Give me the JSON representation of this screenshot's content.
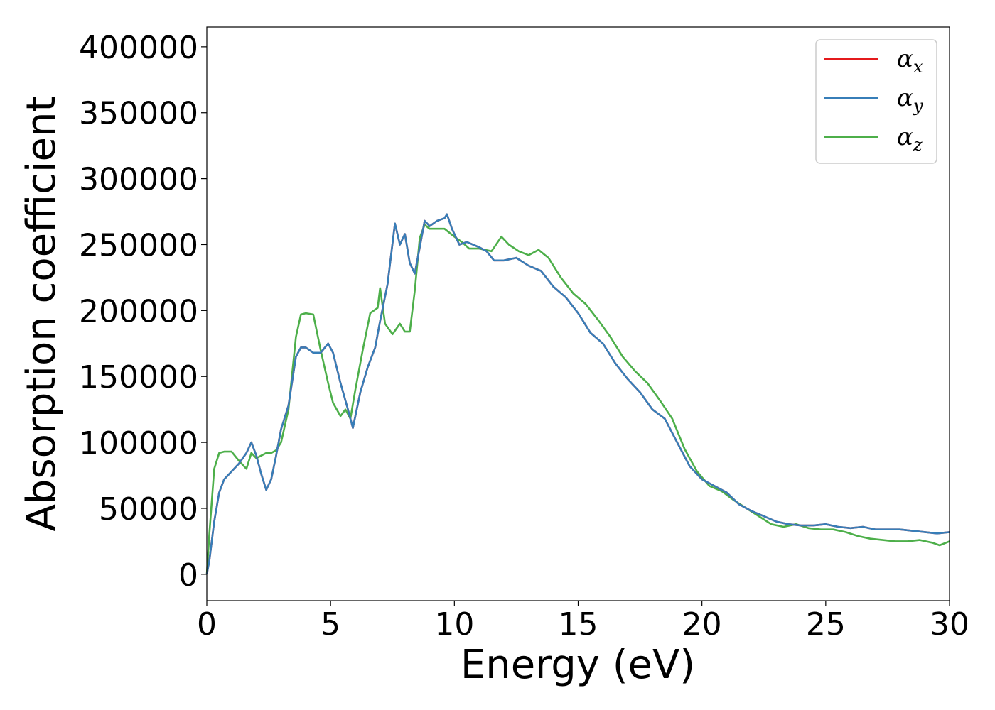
{
  "chart_data": {
    "type": "line",
    "xlabel": "Energy (eV)",
    "ylabel": "Absorption coefficient",
    "xlim": [
      0,
      30
    ],
    "ylim": [
      -20000,
      415000
    ],
    "xticks": [
      0,
      5,
      10,
      15,
      20,
      25,
      30
    ],
    "yticks": [
      0,
      50000,
      100000,
      150000,
      200000,
      250000,
      300000,
      350000,
      400000
    ],
    "grid": false,
    "legend_position": "top-right",
    "series": [
      {
        "name": "α_x",
        "label_main": "α",
        "label_sub": "x",
        "color": "#e41a1c",
        "x": [
          0,
          0.1,
          0.3,
          0.5,
          0.7,
          1.0,
          1.3,
          1.6,
          1.8,
          2.0,
          2.2,
          2.4,
          2.6,
          2.8,
          3.0,
          3.3,
          3.6,
          3.8,
          4.0,
          4.3,
          4.6,
          4.9,
          5.1,
          5.4,
          5.7,
          5.9,
          6.2,
          6.5,
          6.8,
          7.0,
          7.3,
          7.6,
          7.8,
          8.0,
          8.2,
          8.4,
          8.6,
          8.8,
          9.0,
          9.3,
          9.6,
          9.7,
          9.9,
          10.2,
          10.5,
          11.0,
          11.3,
          11.6,
          12.0,
          12.5,
          13.0,
          13.5,
          14.0,
          14.5,
          15.0,
          15.5,
          16.0,
          16.5,
          17.0,
          17.5,
          18.0,
          18.5,
          19.0,
          19.5,
          20.0,
          20.5,
          21.0,
          21.5,
          22.0,
          22.5,
          23.0,
          23.5,
          24.0,
          24.5,
          25.0,
          25.5,
          26.0,
          26.5,
          27.0,
          27.5,
          28.0,
          28.5,
          29.0,
          29.5,
          30.0
        ],
        "y": [
          0,
          10000,
          40000,
          62000,
          72000,
          78000,
          84000,
          92000,
          100000,
          90000,
          76000,
          64000,
          72000,
          90000,
          110000,
          128000,
          165000,
          172000,
          172000,
          168000,
          168000,
          175000,
          168000,
          145000,
          125000,
          111000,
          138000,
          157000,
          172000,
          192000,
          220000,
          266000,
          250000,
          258000,
          236000,
          228000,
          248000,
          268000,
          264000,
          268000,
          270000,
          273000,
          262000,
          250000,
          252000,
          248000,
          245000,
          238000,
          238000,
          240000,
          234000,
          230000,
          218000,
          210000,
          198000,
          183000,
          175000,
          160000,
          148000,
          138000,
          125000,
          118000,
          100000,
          82000,
          72000,
          67000,
          62000,
          53000,
          48000,
          44000,
          40000,
          38000,
          37000,
          37000,
          38000,
          36000,
          35000,
          36000,
          34000,
          34000,
          34000,
          33000,
          32000,
          31000,
          32000
        ]
      },
      {
        "name": "α_y",
        "label_main": "α",
        "label_sub": "y",
        "color": "#377eb8",
        "x": [
          0,
          0.1,
          0.3,
          0.5,
          0.7,
          1.0,
          1.3,
          1.6,
          1.8,
          2.0,
          2.2,
          2.4,
          2.6,
          2.8,
          3.0,
          3.3,
          3.6,
          3.8,
          4.0,
          4.3,
          4.6,
          4.9,
          5.1,
          5.4,
          5.7,
          5.9,
          6.2,
          6.5,
          6.8,
          7.0,
          7.3,
          7.6,
          7.8,
          8.0,
          8.2,
          8.4,
          8.6,
          8.8,
          9.0,
          9.3,
          9.6,
          9.7,
          9.9,
          10.2,
          10.5,
          11.0,
          11.3,
          11.6,
          12.0,
          12.5,
          13.0,
          13.5,
          14.0,
          14.5,
          15.0,
          15.5,
          16.0,
          16.5,
          17.0,
          17.5,
          18.0,
          18.5,
          19.0,
          19.5,
          20.0,
          20.5,
          21.0,
          21.5,
          22.0,
          22.5,
          23.0,
          23.5,
          24.0,
          24.5,
          25.0,
          25.5,
          26.0,
          26.5,
          27.0,
          27.5,
          28.0,
          28.5,
          29.0,
          29.5,
          30.0
        ],
        "y": [
          0,
          10000,
          40000,
          62000,
          72000,
          78000,
          84000,
          92000,
          100000,
          90000,
          76000,
          64000,
          72000,
          90000,
          110000,
          128000,
          165000,
          172000,
          172000,
          168000,
          168000,
          175000,
          168000,
          145000,
          125000,
          111000,
          138000,
          157000,
          172000,
          192000,
          220000,
          266000,
          250000,
          258000,
          236000,
          228000,
          248000,
          268000,
          264000,
          268000,
          270000,
          273000,
          262000,
          250000,
          252000,
          248000,
          245000,
          238000,
          238000,
          240000,
          234000,
          230000,
          218000,
          210000,
          198000,
          183000,
          175000,
          160000,
          148000,
          138000,
          125000,
          118000,
          100000,
          82000,
          72000,
          67000,
          62000,
          53000,
          48000,
          44000,
          40000,
          38000,
          37000,
          37000,
          38000,
          36000,
          35000,
          36000,
          34000,
          34000,
          34000,
          33000,
          32000,
          31000,
          32000
        ]
      },
      {
        "name": "α_z",
        "label_main": "α",
        "label_sub": "z",
        "color": "#4daf4a",
        "x": [
          0,
          0.1,
          0.3,
          0.5,
          0.7,
          1.0,
          1.3,
          1.6,
          1.8,
          2.0,
          2.2,
          2.4,
          2.6,
          2.8,
          3.0,
          3.3,
          3.6,
          3.8,
          4.0,
          4.3,
          4.6,
          4.9,
          5.1,
          5.4,
          5.6,
          5.8,
          6.0,
          6.3,
          6.6,
          6.9,
          7.0,
          7.2,
          7.5,
          7.8,
          8.0,
          8.2,
          8.4,
          8.6,
          8.8,
          9.0,
          9.3,
          9.6,
          10.0,
          10.3,
          10.6,
          11.0,
          11.5,
          11.9,
          12.2,
          12.6,
          13.0,
          13.4,
          13.8,
          14.3,
          14.8,
          15.3,
          15.8,
          16.3,
          16.8,
          17.3,
          17.8,
          18.3,
          18.8,
          19.3,
          19.8,
          20.3,
          20.8,
          21.3,
          21.8,
          22.3,
          22.8,
          23.3,
          23.8,
          24.3,
          24.8,
          25.3,
          25.8,
          26.3,
          26.8,
          27.3,
          27.8,
          28.3,
          28.8,
          29.3,
          29.6,
          30.0
        ],
        "y": [
          0,
          30000,
          80000,
          92000,
          93000,
          93000,
          86000,
          80000,
          92000,
          88000,
          90000,
          92000,
          92000,
          94000,
          100000,
          125000,
          180000,
          197000,
          198000,
          197000,
          170000,
          145000,
          130000,
          120000,
          125000,
          118000,
          140000,
          170000,
          198000,
          202000,
          217000,
          190000,
          182000,
          190000,
          184000,
          184000,
          215000,
          255000,
          265000,
          262000,
          262000,
          262000,
          256000,
          252000,
          247000,
          247000,
          245000,
          256000,
          250000,
          245000,
          242000,
          246000,
          240000,
          225000,
          213000,
          205000,
          193000,
          180000,
          165000,
          154000,
          145000,
          132000,
          118000,
          95000,
          78000,
          67000,
          63000,
          56000,
          50000,
          44000,
          38000,
          36000,
          38000,
          35000,
          34000,
          34000,
          32000,
          29000,
          27000,
          26000,
          25000,
          25000,
          26000,
          24000,
          22000,
          25000
        ]
      }
    ]
  }
}
